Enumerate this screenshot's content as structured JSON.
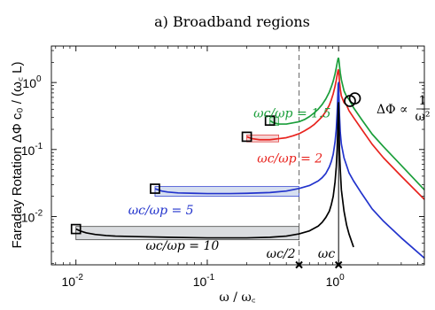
{
  "chart_data": {
    "type": "line",
    "title": "a) Broadband regions",
    "ylabel": "Faraday Rotation ΔΦ c₀ / (ω꜀ L)",
    "xlabel": "ω / ω꜀",
    "xscale": "log",
    "yscale": "log",
    "xlim": [
      0.0065,
      4.5
    ],
    "ylim": [
      0.0019,
      3.5
    ],
    "xticks": [
      0.01,
      0.1,
      1
    ],
    "xtick_labels": [
      "10",
      "10",
      "10"
    ],
    "xtick_exponents": [
      "-2",
      "-1",
      "0"
    ],
    "yticks": [
      0.01,
      0.1,
      1
    ],
    "ytick_labels": [
      "10",
      "10",
      "10"
    ],
    "ytick_exponents": [
      "-2",
      "-1",
      "0"
    ],
    "grid": false,
    "series": [
      {
        "name": "ωc/ωp = 1.5",
        "color": "#1a9e3a",
        "x": [
          0.3,
          0.32,
          0.35,
          0.4,
          0.45,
          0.5,
          0.55,
          0.6,
          0.65,
          0.7,
          0.75,
          0.8,
          0.85,
          0.88,
          0.91,
          0.94,
          0.96,
          0.975,
          0.985,
          0.993,
          1.0,
          1.007,
          1.015,
          1.03,
          1.05,
          1.1,
          1.15,
          1.2,
          1.3,
          1.5,
          1.8,
          2.2,
          3,
          4.5
        ],
        "y": [
          0.27,
          0.25,
          0.24,
          0.24,
          0.25,
          0.26,
          0.28,
          0.31,
          0.35,
          0.4,
          0.47,
          0.57,
          0.72,
          0.86,
          1.05,
          1.35,
          1.65,
          1.95,
          2.15,
          2.3,
          2.3,
          2.1,
          1.8,
          1.4,
          1.1,
          0.75,
          0.62,
          0.56,
          0.42,
          0.28,
          0.17,
          0.11,
          0.058,
          0.025
        ]
      },
      {
        "name": "ωc/ωp = 2",
        "color": "#e8231e",
        "x": [
          0.2,
          0.22,
          0.25,
          0.3,
          0.35,
          0.4,
          0.45,
          0.5,
          0.55,
          0.6,
          0.65,
          0.7,
          0.75,
          0.8,
          0.85,
          0.88,
          0.91,
          0.94,
          0.96,
          0.975,
          0.985,
          0.993,
          1.0,
          1.007,
          1.015,
          1.03,
          1.05,
          1.1,
          1.15,
          1.2,
          1.3,
          1.5,
          1.8,
          2.2,
          3,
          4.5
        ],
        "y": [
          0.155,
          0.145,
          0.14,
          0.14,
          0.145,
          0.15,
          0.16,
          0.172,
          0.19,
          0.21,
          0.235,
          0.27,
          0.31,
          0.37,
          0.46,
          0.55,
          0.68,
          0.88,
          1.08,
          1.3,
          1.45,
          1.55,
          1.5,
          1.3,
          1.05,
          0.8,
          0.63,
          0.5,
          0.46,
          0.38,
          0.3,
          0.2,
          0.12,
          0.075,
          0.04,
          0.018
        ]
      },
      {
        "name": "ωc/ωp = 5",
        "color": "#2233cc",
        "x": [
          0.04,
          0.045,
          0.05,
          0.06,
          0.08,
          0.1,
          0.15,
          0.2,
          0.3,
          0.4,
          0.5,
          0.6,
          0.7,
          0.75,
          0.8,
          0.85,
          0.88,
          0.91,
          0.94,
          0.96,
          0.975,
          0.985,
          0.993,
          1.0,
          1.007,
          1.015,
          1.03,
          1.05,
          1.1,
          1.2,
          1.3,
          1.5,
          1.8,
          2.2,
          3,
          4.5
        ],
        "y": [
          0.026,
          0.024,
          0.0232,
          0.0225,
          0.0222,
          0.022,
          0.022,
          0.0222,
          0.0228,
          0.024,
          0.0262,
          0.029,
          0.034,
          0.038,
          0.044,
          0.055,
          0.066,
          0.085,
          0.13,
          0.2,
          0.35,
          0.6,
          0.95,
          1.0,
          0.6,
          0.33,
          0.18,
          0.12,
          0.075,
          0.045,
          0.034,
          0.022,
          0.013,
          0.0085,
          0.0048,
          0.0024
        ]
      },
      {
        "name": "ωc/ωp = 10",
        "color": "#000000",
        "x": [
          0.01,
          0.011,
          0.012,
          0.014,
          0.017,
          0.02,
          0.03,
          0.05,
          0.1,
          0.2,
          0.3,
          0.4,
          0.5,
          0.6,
          0.7,
          0.75,
          0.8,
          0.85,
          0.88,
          0.91,
          0.94,
          0.96,
          0.975,
          0.985,
          0.993,
          1.0,
          1.007,
          1.015,
          1.03,
          1.05,
          1.1,
          1.15,
          1.2,
          1.3
        ],
        "y": [
          0.0065,
          0.006,
          0.0057,
          0.0054,
          0.0052,
          0.0051,
          0.005,
          0.0049,
          0.0048,
          0.0048,
          0.0049,
          0.0051,
          0.0055,
          0.0061,
          0.0072,
          0.0082,
          0.0097,
          0.012,
          0.015,
          0.02,
          0.033,
          0.055,
          0.1,
          0.2,
          0.4,
          0.5,
          0.25,
          0.1,
          0.05,
          0.025,
          0.012,
          0.0075,
          0.0055,
          0.0035
        ]
      }
    ],
    "series_labels": [
      {
        "text": "ωc/ωp = 1.5",
        "color": "#1a9e3a",
        "x": 0.225,
        "y": 0.3
      },
      {
        "text": "ωc/ωp = 2",
        "color": "#e8231e",
        "x": 0.24,
        "y": 0.064
      },
      {
        "text": "ωc/ωp = 5",
        "color": "#2233cc",
        "x": 0.025,
        "y": 0.0108
      },
      {
        "text": "ωc/ωp = 10",
        "color": "#000000",
        "x": 0.034,
        "y": 0.0032
      }
    ],
    "bands": [
      {
        "color": "#e03030",
        "fill": "#f6cfcf",
        "x": [
          0.2,
          0.35
        ],
        "y": [
          0.13,
          0.165
        ]
      },
      {
        "color": "#1a9e3a",
        "fill": "#cfe9d6",
        "x": [
          0.3,
          0.35
        ],
        "y": [
          0.23,
          0.3
        ]
      },
      {
        "color": "#2233cc",
        "fill": "#d2dcef",
        "x": [
          0.04,
          0.5
        ],
        "y": [
          0.02,
          0.028
        ]
      },
      {
        "color": "#333333",
        "fill": "#d7d9dc",
        "x": [
          0.01,
          0.5
        ],
        "y": [
          0.0045,
          0.0071
        ]
      }
    ],
    "square_markers": [
      {
        "x": 0.3,
        "y": 0.27
      },
      {
        "x": 0.2,
        "y": 0.155
      },
      {
        "x": 0.04,
        "y": 0.026
      },
      {
        "x": 0.01,
        "y": 0.0065
      }
    ],
    "circle_markers": [
      {
        "x": 1.22,
        "y": 0.53
      },
      {
        "x": 1.33,
        "y": 0.58
      }
    ],
    "half_line": {
      "x": 0.5,
      "label": "ωc/2"
    },
    "resonance_line": {
      "x": 1.0,
      "label": "ωc"
    },
    "scaling_annotation": {
      "lhs": "ΔΦ ∝",
      "numerator": "1",
      "denominator": "ω²"
    }
  }
}
